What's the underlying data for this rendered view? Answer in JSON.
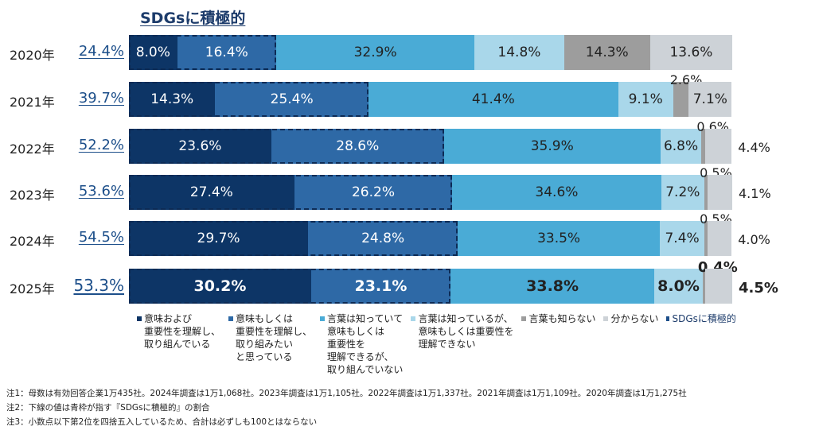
{
  "chart_data": {
    "type": "bar",
    "orientation": "horizontal",
    "stacked": true,
    "title": "SDGsに積極的",
    "categories": [
      "2020年",
      "2021年",
      "2022年",
      "2023年",
      "2024年",
      "2025年"
    ],
    "totals_label": [
      "24.4%",
      "39.7%",
      "52.2%",
      "53.6%",
      "54.5%",
      "53.3%"
    ],
    "series": [
      {
        "name": "意味および\n重要性を理解し、\n取り組んでいる",
        "color": "#0d3566",
        "values": [
          8.0,
          14.3,
          23.6,
          27.4,
          29.7,
          30.2
        ]
      },
      {
        "name": "意味もしくは\n重要性を理解し、\n取り組みたい\nと思っている",
        "color": "#2e69a6",
        "values": [
          16.4,
          25.4,
          28.6,
          26.2,
          24.8,
          23.1
        ]
      },
      {
        "name": "言葉は知っていて\n意味もしくは\n重要性を\n理解できるが、\n取り組んでいない",
        "color": "#4aabd6",
        "values": [
          32.9,
          41.4,
          35.9,
          34.6,
          33.5,
          33.8
        ]
      },
      {
        "name": "言葉は知っているが、\n意味もしくは重要性を\n理解できない",
        "color": "#a9d7ea",
        "values": [
          14.8,
          9.1,
          6.8,
          7.2,
          7.4,
          8.0
        ]
      },
      {
        "name": "言葉も知らない",
        "color": "#9d9d9d",
        "values": [
          14.3,
          2.6,
          0.6,
          0.5,
          0.5,
          0.4
        ]
      },
      {
        "name": "分からない",
        "color": "#cdd2d7",
        "values": [
          13.6,
          7.1,
          4.4,
          4.1,
          4.0,
          4.5
        ]
      }
    ],
    "legend_extra": "SDGsに積極的",
    "xlim": [
      0,
      100
    ],
    "legend_position": "bottom",
    "grid": false
  },
  "notes": [
    "注1：母数は有効回答企業1万435社。2024年調査は1万1,068社。2023年調査は1万1,105社。2022年調査は1万1,337社。2021年調査は1万1,109社。2020年調査は1万1,275社",
    "注2：下線の値は青枠が指す『SDGsに積極的』の割合",
    "注3：小数点以下第2位を四捨五入しているため、合計は必ずしも100とはならない"
  ]
}
